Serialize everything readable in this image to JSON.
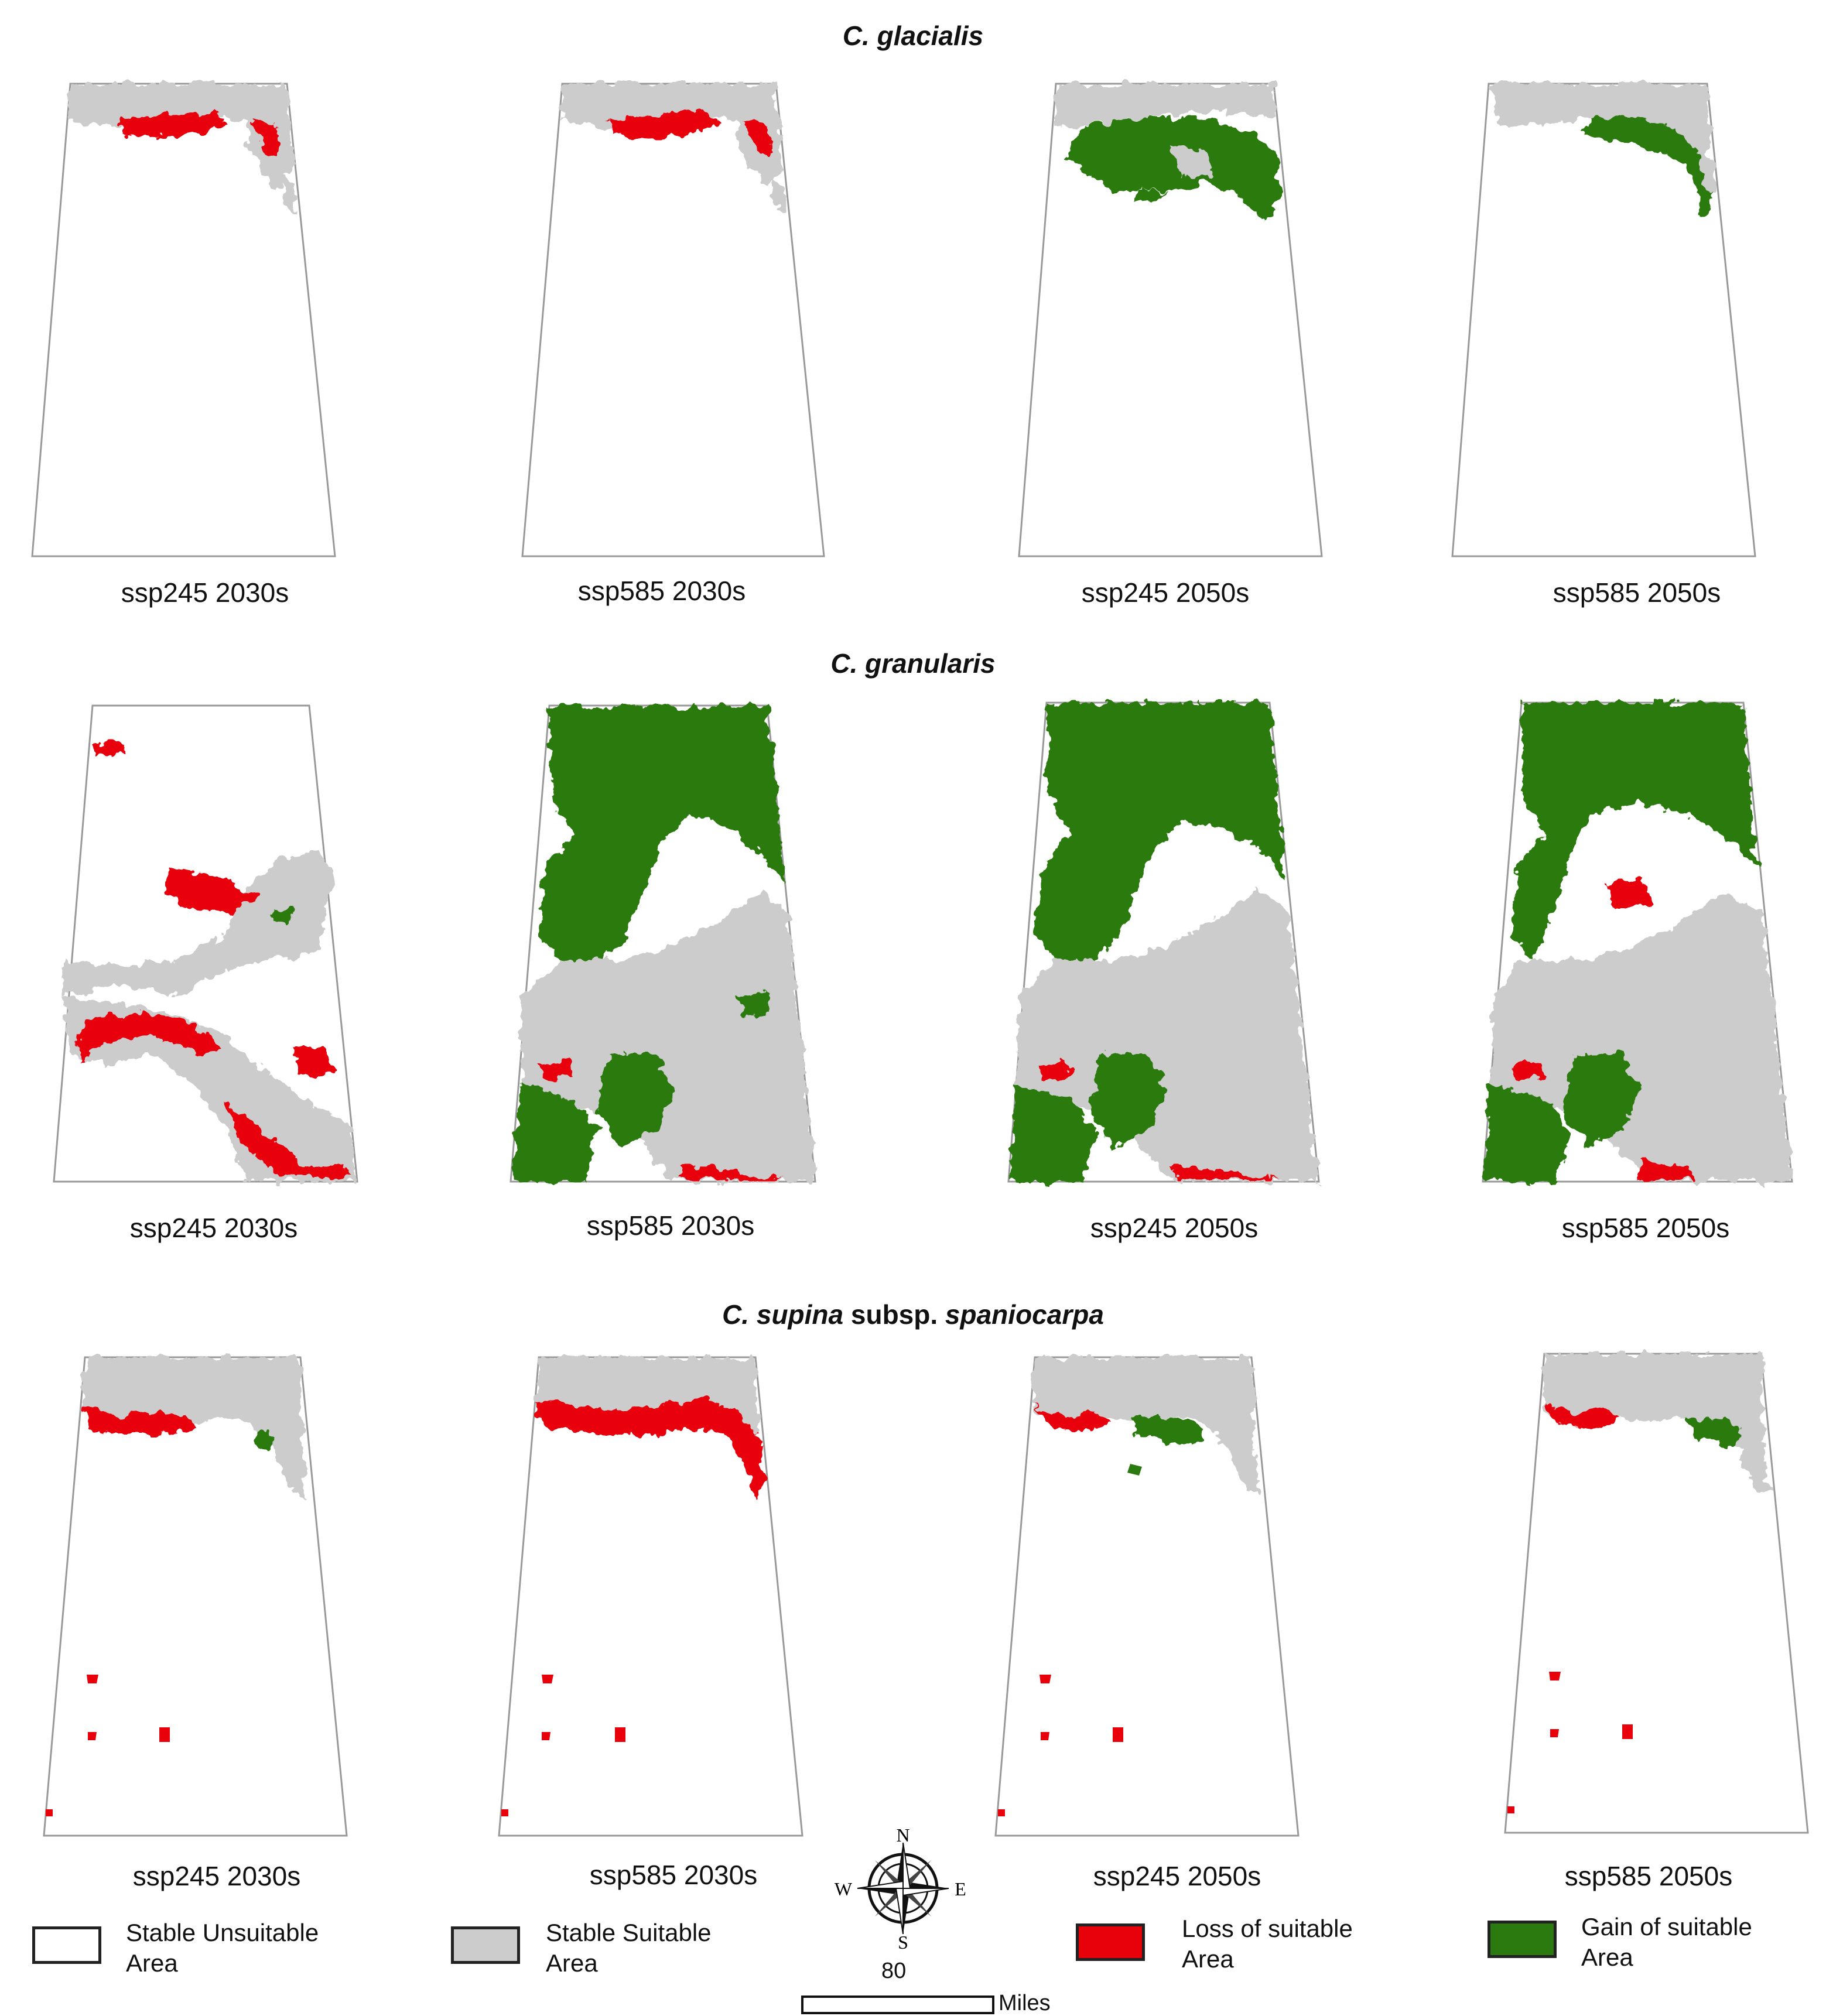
{
  "species": [
    {
      "title_prefix": "C. glacialis",
      "title_suffix": "",
      "title_suffix2": ""
    },
    {
      "title_prefix": "C. granularis",
      "title_suffix": "",
      "title_suffix2": ""
    },
    {
      "title_prefix": "C. supina",
      "title_suffix": " subsp. ",
      "title_suffix2": "spaniocarpa"
    }
  ],
  "panels": [
    [
      "ssp245 2030s",
      "ssp585 2030s",
      "ssp245 2050s",
      "ssp585 2050s"
    ],
    [
      "ssp245 2030s",
      "ssp585 2030s",
      "ssp245 2050s",
      "ssp585 2050s"
    ],
    [
      "ssp245 2030s",
      "ssp585 2030s",
      "ssp245 2050s",
      "ssp585 2050s"
    ]
  ],
  "legend": [
    {
      "line1": "Stable Unsuitable",
      "line2": "Area",
      "color": "#ffffff"
    },
    {
      "line1": "Stable Suitable",
      "line2": "Area",
      "color": "#cccccc"
    },
    {
      "line1": "Loss of suitable",
      "line2": "Area",
      "color": "#e8000b"
    },
    {
      "line1": "Gain of suitable",
      "line2": "Area",
      "color": "#2b7a10"
    }
  ],
  "compass": {
    "n": "N",
    "s": "S",
    "e": "E",
    "w": "W"
  },
  "scale": {
    "value": "80",
    "unit": "Miles"
  },
  "colors": {
    "gray": "#cccccc",
    "red": "#e8000b",
    "green": "#2b7a10",
    "outline": "#999999"
  }
}
